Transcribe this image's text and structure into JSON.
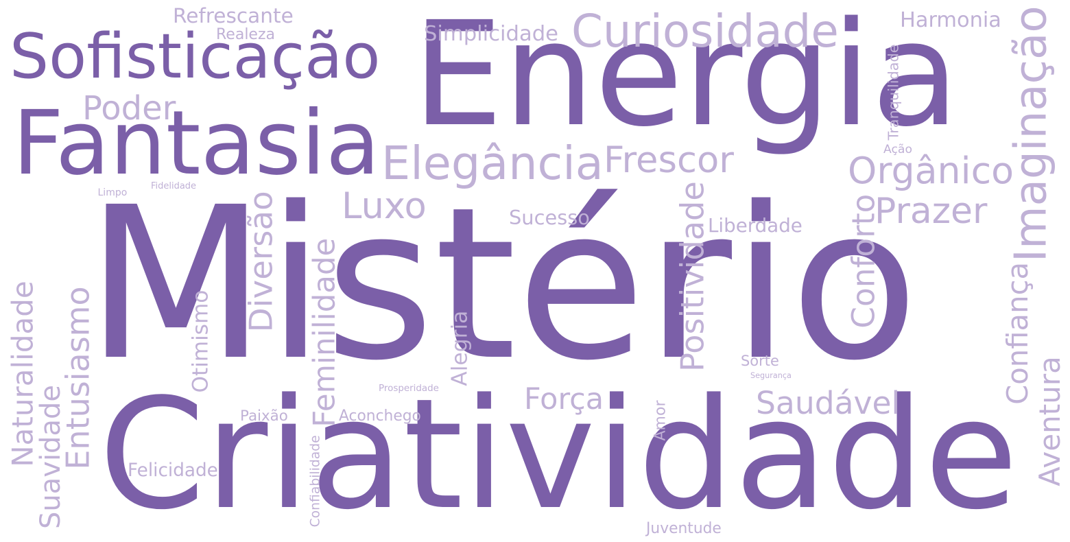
{
  "colors": {
    "background": "#ffffff",
    "dark": "#7b5fa8",
    "light": "#c0b1d6"
  },
  "words": [
    {
      "text": "Mistério",
      "tone": "dark",
      "vertical": false
    },
    {
      "text": "Criatividade",
      "tone": "dark",
      "vertical": false
    },
    {
      "text": "Energia",
      "tone": "dark",
      "vertical": false
    },
    {
      "text": "Fantasia",
      "tone": "dark",
      "vertical": false
    },
    {
      "text": "Sofisticação",
      "tone": "dark",
      "vertical": false
    },
    {
      "text": "Curiosidade",
      "tone": "light",
      "vertical": false
    },
    {
      "text": "Elegância",
      "tone": "light",
      "vertical": false
    },
    {
      "text": "Imaginação",
      "tone": "light",
      "vertical": true
    },
    {
      "text": "Orgânico",
      "tone": "light",
      "vertical": false
    },
    {
      "text": "Frescor",
      "tone": "light",
      "vertical": false
    },
    {
      "text": "Prazer",
      "tone": "light",
      "vertical": false
    },
    {
      "text": "Luxo",
      "tone": "light",
      "vertical": false
    },
    {
      "text": "Poder",
      "tone": "light",
      "vertical": false
    },
    {
      "text": "Saudável",
      "tone": "light",
      "vertical": false
    },
    {
      "text": "Força",
      "tone": "light",
      "vertical": false
    },
    {
      "text": "Positividade",
      "tone": "light",
      "vertical": true
    },
    {
      "text": "Conforto",
      "tone": "light",
      "vertical": true
    },
    {
      "text": "Confiança",
      "tone": "light",
      "vertical": true
    },
    {
      "text": "Aventura",
      "tone": "light",
      "vertical": true
    },
    {
      "text": "Naturalidade",
      "tone": "light",
      "vertical": true
    },
    {
      "text": "Diversão",
      "tone": "light",
      "vertical": true
    },
    {
      "text": "Feminilidade",
      "tone": "light",
      "vertical": true
    },
    {
      "text": "Entusiasmo",
      "tone": "light",
      "vertical": true
    },
    {
      "text": "Suavidade",
      "tone": "light",
      "vertical": true
    },
    {
      "text": "Harmonia",
      "tone": "light",
      "vertical": false
    },
    {
      "text": "Refrescante",
      "tone": "light",
      "vertical": false
    },
    {
      "text": "Simplicidade",
      "tone": "light",
      "vertical": false
    },
    {
      "text": "Sucesso",
      "tone": "light",
      "vertical": false
    },
    {
      "text": "Liberdade",
      "tone": "light",
      "vertical": false
    },
    {
      "text": "Alegria",
      "tone": "light",
      "vertical": true
    },
    {
      "text": "Otimismo",
      "tone": "light",
      "vertical": true
    },
    {
      "text": "Aconchego",
      "tone": "light",
      "vertical": false
    },
    {
      "text": "Felicidade",
      "tone": "light",
      "vertical": false
    },
    {
      "text": "Realeza",
      "tone": "light",
      "vertical": false
    },
    {
      "text": "Paixão",
      "tone": "light",
      "vertical": false
    },
    {
      "text": "Juventude",
      "tone": "light",
      "vertical": false
    },
    {
      "text": "Sorte",
      "tone": "light",
      "vertical": false
    },
    {
      "text": "Tranquilidade",
      "tone": "light",
      "vertical": true
    },
    {
      "text": "Amor",
      "tone": "light",
      "vertical": true
    },
    {
      "text": "Confiabilidade",
      "tone": "light",
      "vertical": true
    },
    {
      "text": "Prosperidade",
      "tone": "light",
      "vertical": false
    },
    {
      "text": "Segurança",
      "tone": "light",
      "vertical": false
    },
    {
      "text": "Ação",
      "tone": "light",
      "vertical": false
    },
    {
      "text": "Limpo",
      "tone": "light",
      "vertical": false
    },
    {
      "text": "Fidelidade",
      "tone": "light",
      "vertical": false
    }
  ]
}
